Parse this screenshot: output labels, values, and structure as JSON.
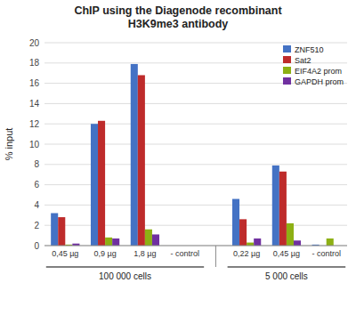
{
  "chart_data": {
    "type": "bar",
    "title": "ChIP using the Diagenode recombinant\nH3K9me3 antibody",
    "y_label": "% input",
    "categories": [
      "0,45 µg",
      "0,9 µg",
      "1,8 µg",
      "- control",
      "0,22 µg",
      "0,45 µg",
      "- control"
    ],
    "sections": [
      "100 000 cells",
      "100 000 cells",
      "100 000 cells",
      "100 000 cells",
      "5 000 cells",
      "5 000 cells",
      "5 000 cells"
    ],
    "series": [
      {
        "name": "ZNF510",
        "color": "#4472C4",
        "values": [
          3.2,
          12.0,
          17.9,
          0.0,
          4.6,
          7.9,
          0.1
        ]
      },
      {
        "name": "Sat2",
        "color": "#BE2B2B",
        "values": [
          2.8,
          12.3,
          16.8,
          0.0,
          2.6,
          7.3,
          0.0
        ]
      },
      {
        "name": "EIF4A2 prom",
        "color": "#8DB014",
        "values": [
          0.1,
          0.8,
          1.6,
          0.0,
          0.3,
          2.2,
          0.7
        ]
      },
      {
        "name": "GAPDH prom",
        "color": "#7030A0",
        "values": [
          0.2,
          0.7,
          1.1,
          0.0,
          0.7,
          0.5,
          0.0
        ]
      }
    ],
    "ylim": [
      0,
      20
    ],
    "yticks": [
      0,
      2,
      4,
      6,
      8,
      10,
      12,
      14,
      16,
      18,
      20
    ],
    "grid": true,
    "legend": "upper right"
  }
}
